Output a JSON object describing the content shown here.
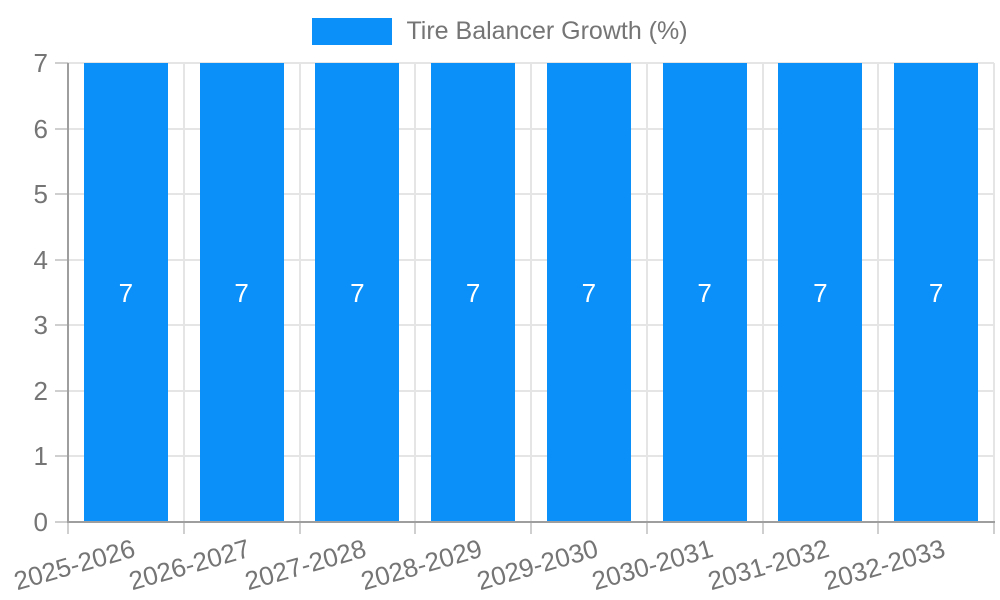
{
  "legend": {
    "label": "Tire Balancer Growth (%)"
  },
  "chart_data": {
    "type": "bar",
    "title": "",
    "xlabel": "",
    "ylabel": "",
    "categories": [
      "2025-2026",
      "2026-2027",
      "2027-2028",
      "2028-2029",
      "2029-2030",
      "2030-2031",
      "2031-2032",
      "2032-2033"
    ],
    "series": [
      {
        "name": "Tire Balancer Growth (%)",
        "values": [
          7,
          7,
          7,
          7,
          7,
          7,
          7,
          7
        ]
      }
    ],
    "bar_value_labels": [
      "7",
      "7",
      "7",
      "7",
      "7",
      "7",
      "7",
      "7"
    ],
    "ylim": [
      0,
      7
    ],
    "yticks": [
      0,
      1,
      2,
      3,
      4,
      5,
      6,
      7
    ],
    "grid": true,
    "legend_position": "top",
    "colors": {
      "bar": "#0A90F8",
      "text": "#757575",
      "bar_label": "#FFFFFF",
      "grid": "#E5E5E5",
      "axis": "#9E9E9E",
      "tick": "#CFCFCF",
      "background": "#FFFFFF"
    }
  }
}
